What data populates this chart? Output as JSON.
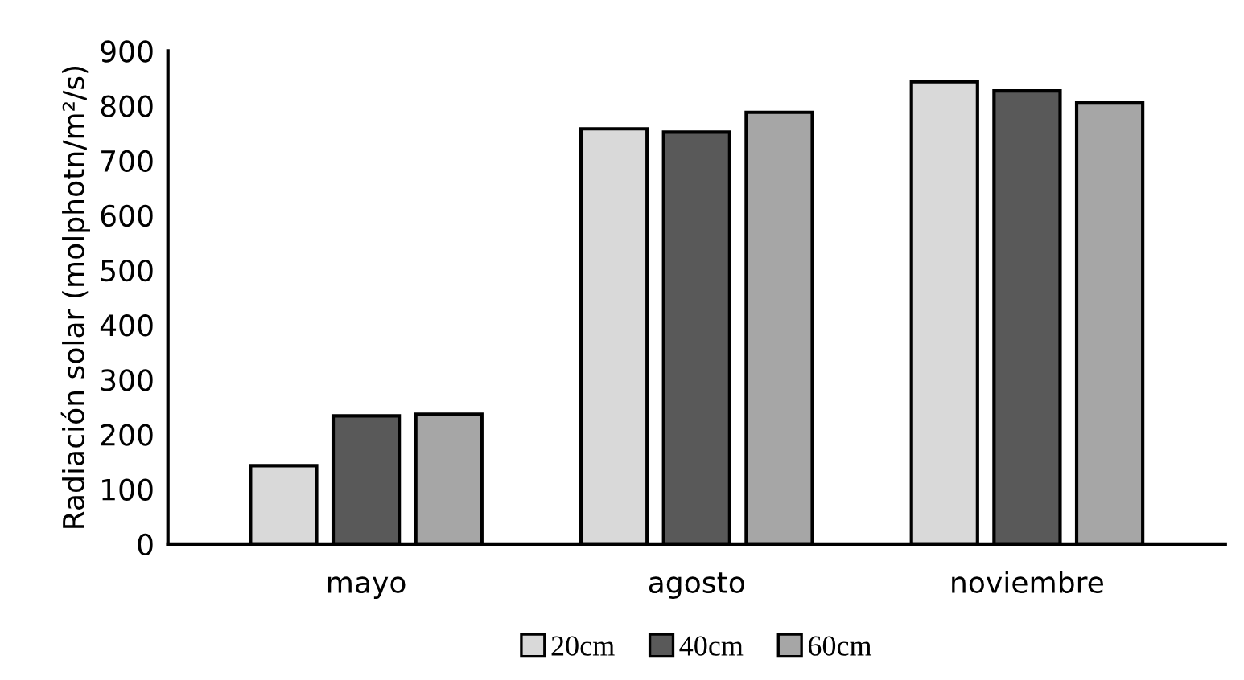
{
  "chart_data": {
    "type": "bar",
    "ylabel": "Radiación solar (molphotn/m²/s)",
    "categories": [
      "mayo",
      "agosto",
      "noviembre"
    ],
    "series": [
      {
        "name": "20cm",
        "color": "#d9d9d9",
        "values": [
          143,
          758,
          844
        ]
      },
      {
        "name": "40cm",
        "color": "#595959",
        "values": [
          234,
          752,
          827
        ]
      },
      {
        "name": "60cm",
        "color": "#a6a6a6",
        "values": [
          237,
          788,
          805
        ]
      }
    ],
    "ylim": [
      0,
      900
    ],
    "yticks": [
      0,
      100,
      200,
      300,
      400,
      500,
      600,
      700,
      800,
      900
    ],
    "grid": false,
    "legend": "bottom"
  }
}
